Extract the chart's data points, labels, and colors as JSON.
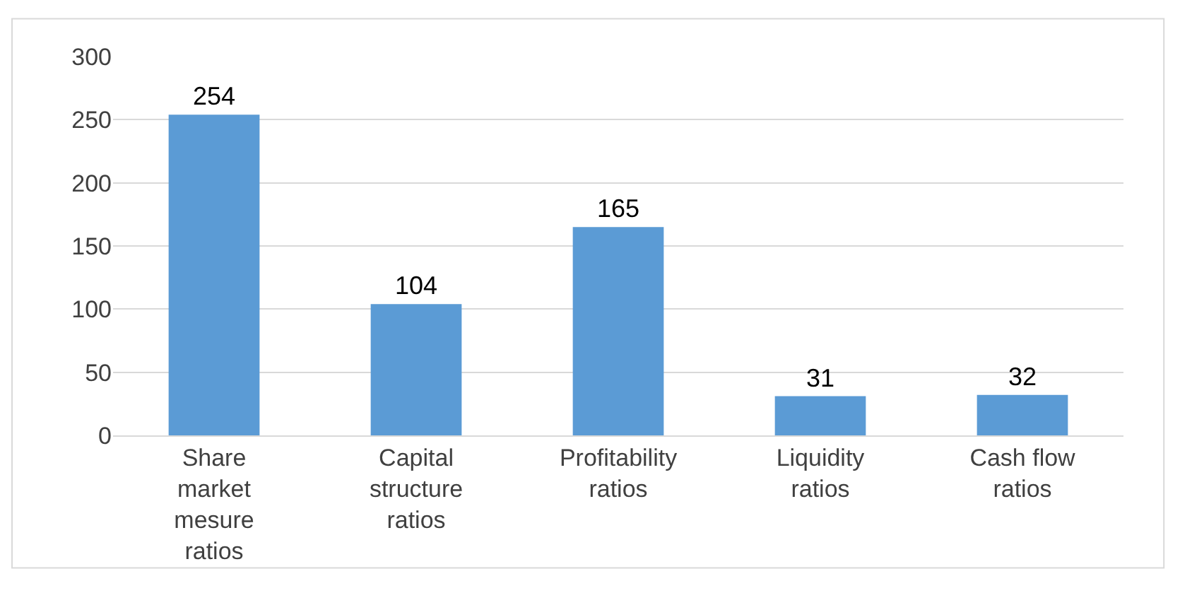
{
  "chart_data": {
    "type": "bar",
    "categories": [
      "Share market mesure ratios",
      "Capital structure ratios",
      "Profitability ratios",
      "Liquidity ratios",
      "Cash flow ratios"
    ],
    "values": [
      254,
      104,
      165,
      31,
      32
    ],
    "color": "#5b9bd5",
    "ylim": [
      0,
      300
    ],
    "yticks": [
      0,
      50,
      100,
      150,
      200,
      250,
      300
    ],
    "grid": "y",
    "data_labels": true
  }
}
